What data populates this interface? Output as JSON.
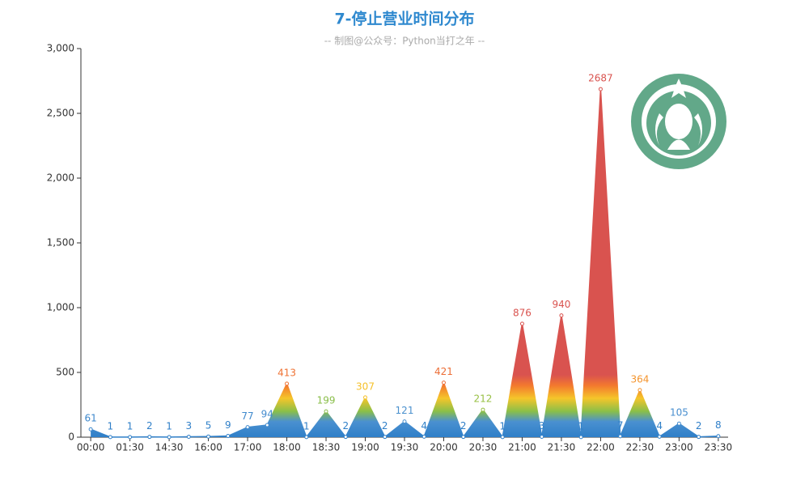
{
  "chart_data": {
    "type": "area",
    "title": "7-停止营业时间分布",
    "subtitle": "-- 制图@公众号：Python当打之年 --",
    "categories": [
      "00:00",
      null,
      "01:30",
      null,
      "14:30",
      null,
      "16:00",
      null,
      "17:00",
      null,
      "18:00",
      null,
      "18:30",
      null,
      "19:00",
      null,
      "19:30",
      null,
      "20:00",
      null,
      "20:30",
      null,
      "21:00",
      null,
      "21:30",
      null,
      "22:00",
      null,
      "22:30",
      null,
      "23:00",
      null,
      "23:30"
    ],
    "values": [
      61,
      1,
      1,
      2,
      1,
      3,
      5,
      9,
      77,
      94,
      413,
      1,
      199,
      2,
      307,
      2,
      121,
      4,
      421,
      2,
      212,
      1,
      876,
      3,
      940,
      1,
      2687,
      7,
      364,
      4,
      105,
      2,
      8
    ],
    "ylim": [
      0,
      3000
    ],
    "yticks": [
      0,
      {
        "value": 500,
        "label": "500"
      },
      {
        "value": 1000,
        "label": "1,000"
      },
      {
        "value": 1500,
        "label": "1,500"
      },
      {
        "value": 2000,
        "label": "2,000"
      },
      {
        "value": 2500,
        "label": "2,500"
      },
      {
        "value": 3000,
        "label": "3,000"
      }
    ],
    "color_stops": [
      {
        "value": 0,
        "color": "#2f7fc8"
      },
      {
        "value": 120,
        "color": "#4a90d0"
      },
      {
        "value": 200,
        "color": "#8bbf48"
      },
      {
        "value": 300,
        "color": "#f5c52a"
      },
      {
        "value": 400,
        "color": "#f3782e"
      },
      {
        "value": 480,
        "color": "#d9534f"
      }
    ]
  }
}
